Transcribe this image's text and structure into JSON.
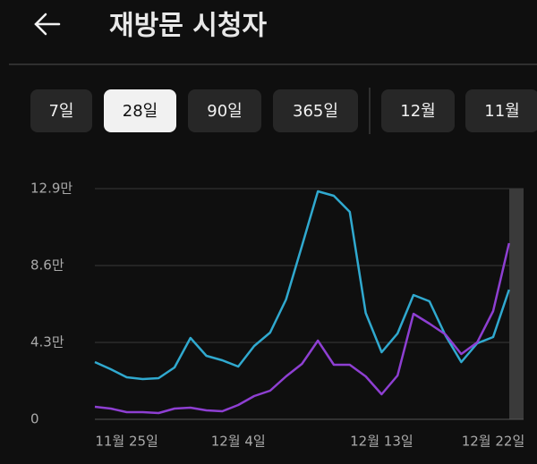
{
  "header": {
    "title": "재방문 시청자"
  },
  "filters": [
    "7일",
    "28일",
    "90일",
    "365일",
    "12월",
    "11월"
  ],
  "selected_filter": 1,
  "chart_data": {
    "type": "line",
    "categories": [
      null,
      null,
      "11월 25일",
      null,
      null,
      null,
      null,
      null,
      null,
      "12월 4일",
      null,
      null,
      null,
      null,
      null,
      null,
      null,
      null,
      "12월 13일",
      null,
      null,
      null,
      null,
      null,
      null,
      "12월 22일",
      null
    ],
    "series": [
      {
        "color": "#30a9cf",
        "values": [
          3.2,
          2.8,
          2.35,
          2.25,
          2.3,
          2.9,
          4.55,
          3.55,
          3.3,
          2.95,
          4.1,
          4.85,
          6.7,
          9.7,
          12.75,
          12.5,
          11.6,
          5.95,
          3.75,
          4.8,
          6.95,
          6.6,
          4.7,
          3.2,
          4.25,
          4.6,
          7.25
        ]
      },
      {
        "color": "#8e3fd2",
        "values": [
          0.7,
          0.6,
          0.4,
          0.4,
          0.35,
          0.6,
          0.65,
          0.5,
          0.45,
          0.8,
          1.3,
          1.6,
          2.4,
          3.1,
          4.4,
          3.05,
          3.05,
          2.4,
          1.4,
          2.45,
          5.9,
          5.35,
          4.75,
          3.65,
          4.3,
          6.05,
          9.85
        ]
      }
    ],
    "ylim": [
      0,
      12.9
    ],
    "yticks": [
      0,
      {
        "value": 4.3,
        "label": "4.3만"
      },
      {
        "value": 8.6,
        "label": "8.6만"
      },
      {
        "value": 12.9,
        "label": "12.9만"
      }
    ],
    "grid": true
  }
}
